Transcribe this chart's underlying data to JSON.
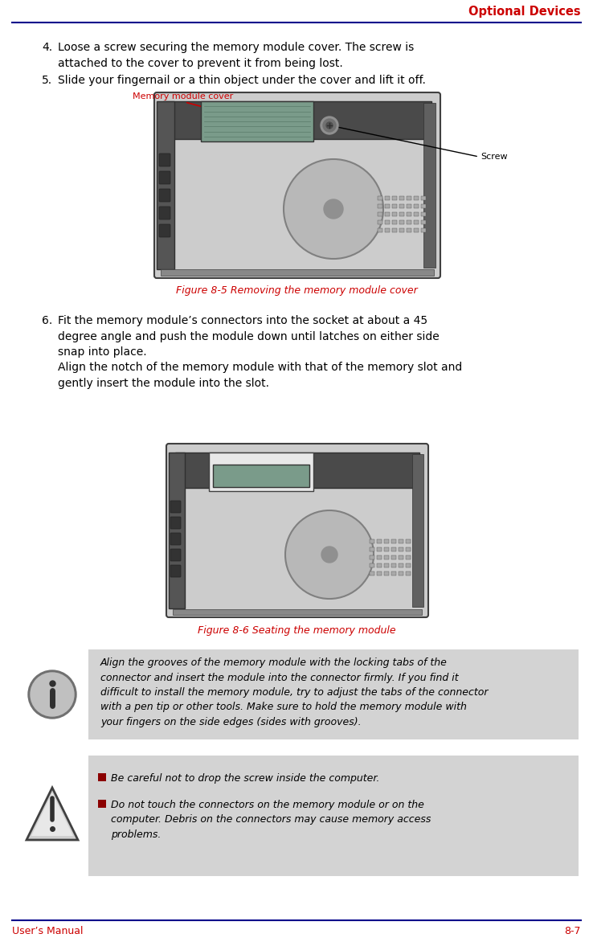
{
  "page_title": "Optional Devices",
  "footer_left": "User’s Manual",
  "footer_right": "8-7",
  "header_line_color": "#00008B",
  "footer_line_color": "#00008B",
  "title_color": "#CC0000",
  "figure_caption_color": "#CC0000",
  "bg_color": "#FFFFFF",
  "note_bg_color": "#D3D3D3",
  "step4_text": "Loose a screw securing the memory module cover. The screw is\nattached to the cover to prevent it from being lost.",
  "step5_text": "Slide your fingernail or a thin object under the cover and lift it off.",
  "fig1_caption": "Figure 8-5 Removing the memory module cover",
  "fig1_label_left": "Memory module cover",
  "fig1_label_right": "Screw",
  "step6_text": "Fit the memory module’s connectors into the socket at about a 45\ndegree angle and push the module down until latches on either side\nsnap into place.\nAlign the notch of the memory module with that of the memory slot and\ngently insert the module into the slot.",
  "fig2_caption": "Figure 8-6 Seating the memory module",
  "note1_text": "Align the grooves of the memory module with the locking tabs of the\nconnector and insert the module into the connector firmly. If you find it\ndifficult to install the memory module, try to adjust the tabs of the connector\nwith a pen tip or other tools. Make sure to hold the memory module with\nyour fingers on the side edges (sides with grooves).",
  "warning_text1": "Be careful not to drop the screw inside the computer.",
  "warning_text2": "Do not touch the connectors on the memory module or on the\ncomputer. Debris on the connectors may cause memory access\nproblems.",
  "bullet_color": "#8B0000",
  "body_font_size": 10
}
